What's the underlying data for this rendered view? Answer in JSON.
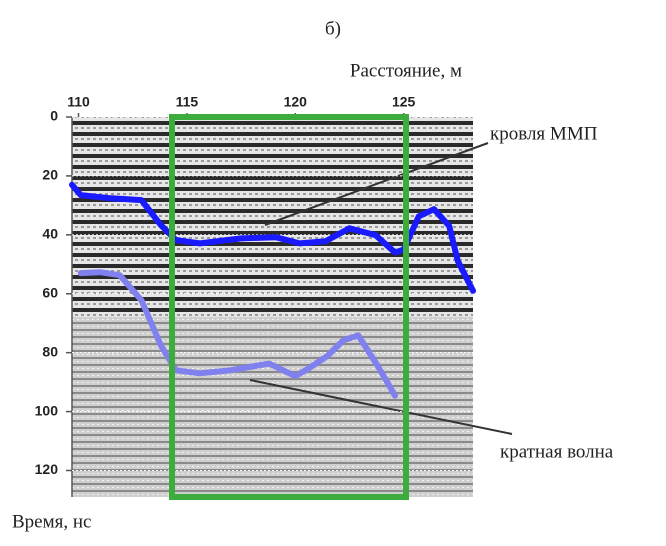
{
  "chart_data": {
    "type": "line",
    "title": "б)",
    "x_label": "Расстояние, м",
    "y_label": "Время, нс",
    "xlim": [
      109.7,
      128.2
    ],
    "xticks": [
      110,
      115,
      120,
      125
    ],
    "ylim": [
      0,
      129
    ],
    "yticks": [
      0,
      20,
      40,
      60,
      80,
      100,
      120
    ],
    "y_inverted": true,
    "grid": true,
    "series": [
      {
        "name": "кровля ММП",
        "color": "#1a1aff",
        "x": [
          109.7,
          110.1,
          111.5,
          112.9,
          113.8,
          114.5,
          115.6,
          117.5,
          119.1,
          120.2,
          121.4,
          122.5,
          123.7,
          124.6,
          125,
          125.7,
          126.4,
          127.1,
          127.5,
          128.2
        ],
        "values": [
          23,
          26.5,
          27.6,
          28.2,
          36.7,
          41.8,
          42.9,
          41.2,
          40.8,
          42.9,
          42.2,
          37.8,
          40.1,
          46,
          45,
          33.7,
          31.3,
          37,
          48.9,
          59
        ]
      },
      {
        "name": "кратная волна",
        "color": "#8080ee",
        "x": [
          110.1,
          111,
          111.9,
          112.9,
          113.8,
          114.5,
          115.6,
          117,
          118.8,
          120,
          120.6,
          121.5,
          122.2,
          122.9,
          123.8,
          124.6
        ],
        "values": [
          53,
          52.7,
          53.7,
          62.2,
          77.6,
          86,
          87,
          86,
          83.7,
          88,
          85.4,
          81,
          75.9,
          74.1,
          84.4,
          94.6
        ]
      }
    ]
  }
}
